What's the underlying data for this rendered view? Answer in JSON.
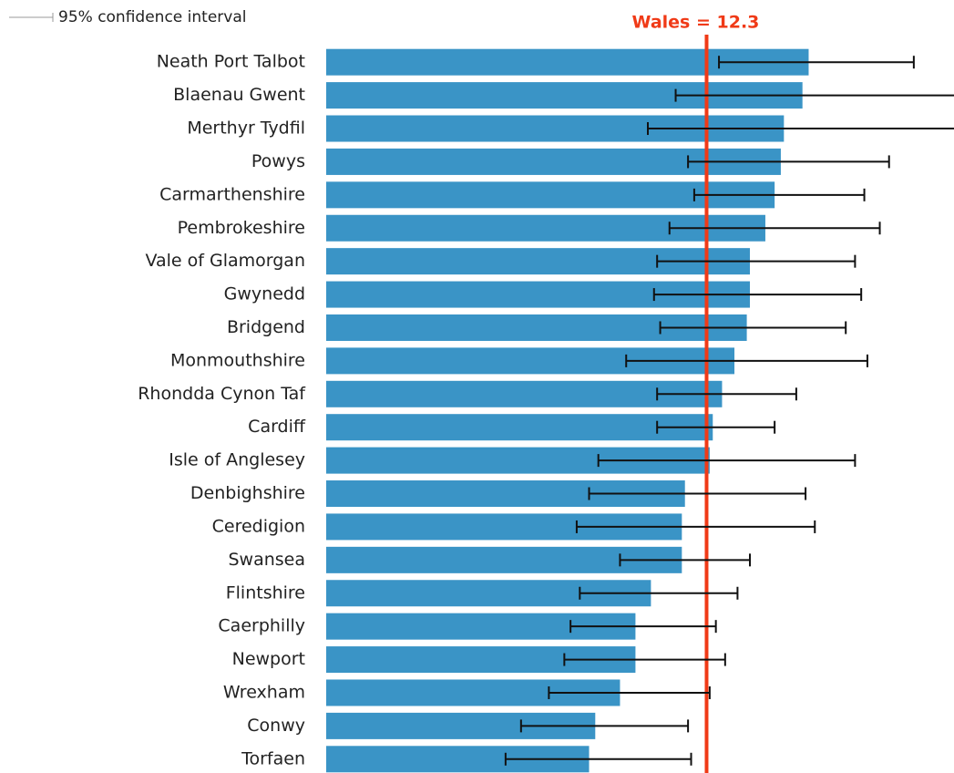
{
  "chart_data": {
    "type": "bar",
    "orientation": "horizontal",
    "legend_label": "95% confidence interval",
    "reference": {
      "label": "Wales = 12.3",
      "value": 12.3,
      "color": "#f03a17"
    },
    "categories": [
      "Neath Port Talbot",
      "Blaenau Gwent",
      "Merthyr Tydfil",
      "Powys",
      "Carmarthenshire",
      "Pembrokeshire",
      "Vale of Glamorgan",
      "Gwynedd",
      "Bridgend",
      "Monmouthshire",
      "Rhondda Cynon Taf",
      "Cardiff",
      "Isle of Anglesey",
      "Denbighshire",
      "Ceredigion",
      "Swansea",
      "Flintshire",
      "Caerphilly",
      "Newport",
      "Wrexham",
      "Conwy",
      "Torfaen"
    ],
    "values": [
      15.6,
      15.4,
      14.8,
      14.7,
      14.5,
      14.2,
      13.7,
      13.7,
      13.6,
      13.2,
      12.8,
      12.5,
      12.4,
      11.6,
      11.5,
      11.5,
      10.5,
      10.0,
      10.0,
      9.5,
      8.7,
      8.5
    ],
    "ci_low": [
      12.7,
      11.3,
      10.4,
      11.7,
      11.9,
      11.1,
      10.7,
      10.6,
      10.8,
      9.7,
      10.7,
      10.7,
      8.8,
      8.5,
      8.1,
      9.5,
      8.2,
      7.9,
      7.7,
      7.2,
      6.3,
      5.8
    ],
    "ci_high": [
      19.0,
      20.6,
      20.8,
      18.2,
      17.4,
      17.9,
      17.1,
      17.3,
      16.8,
      17.5,
      15.2,
      14.5,
      17.1,
      15.5,
      15.8,
      13.7,
      13.3,
      12.6,
      12.9,
      12.4,
      11.7,
      11.8
    ],
    "color": "#3a94c6",
    "xlim": [
      0,
      20.3
    ]
  }
}
